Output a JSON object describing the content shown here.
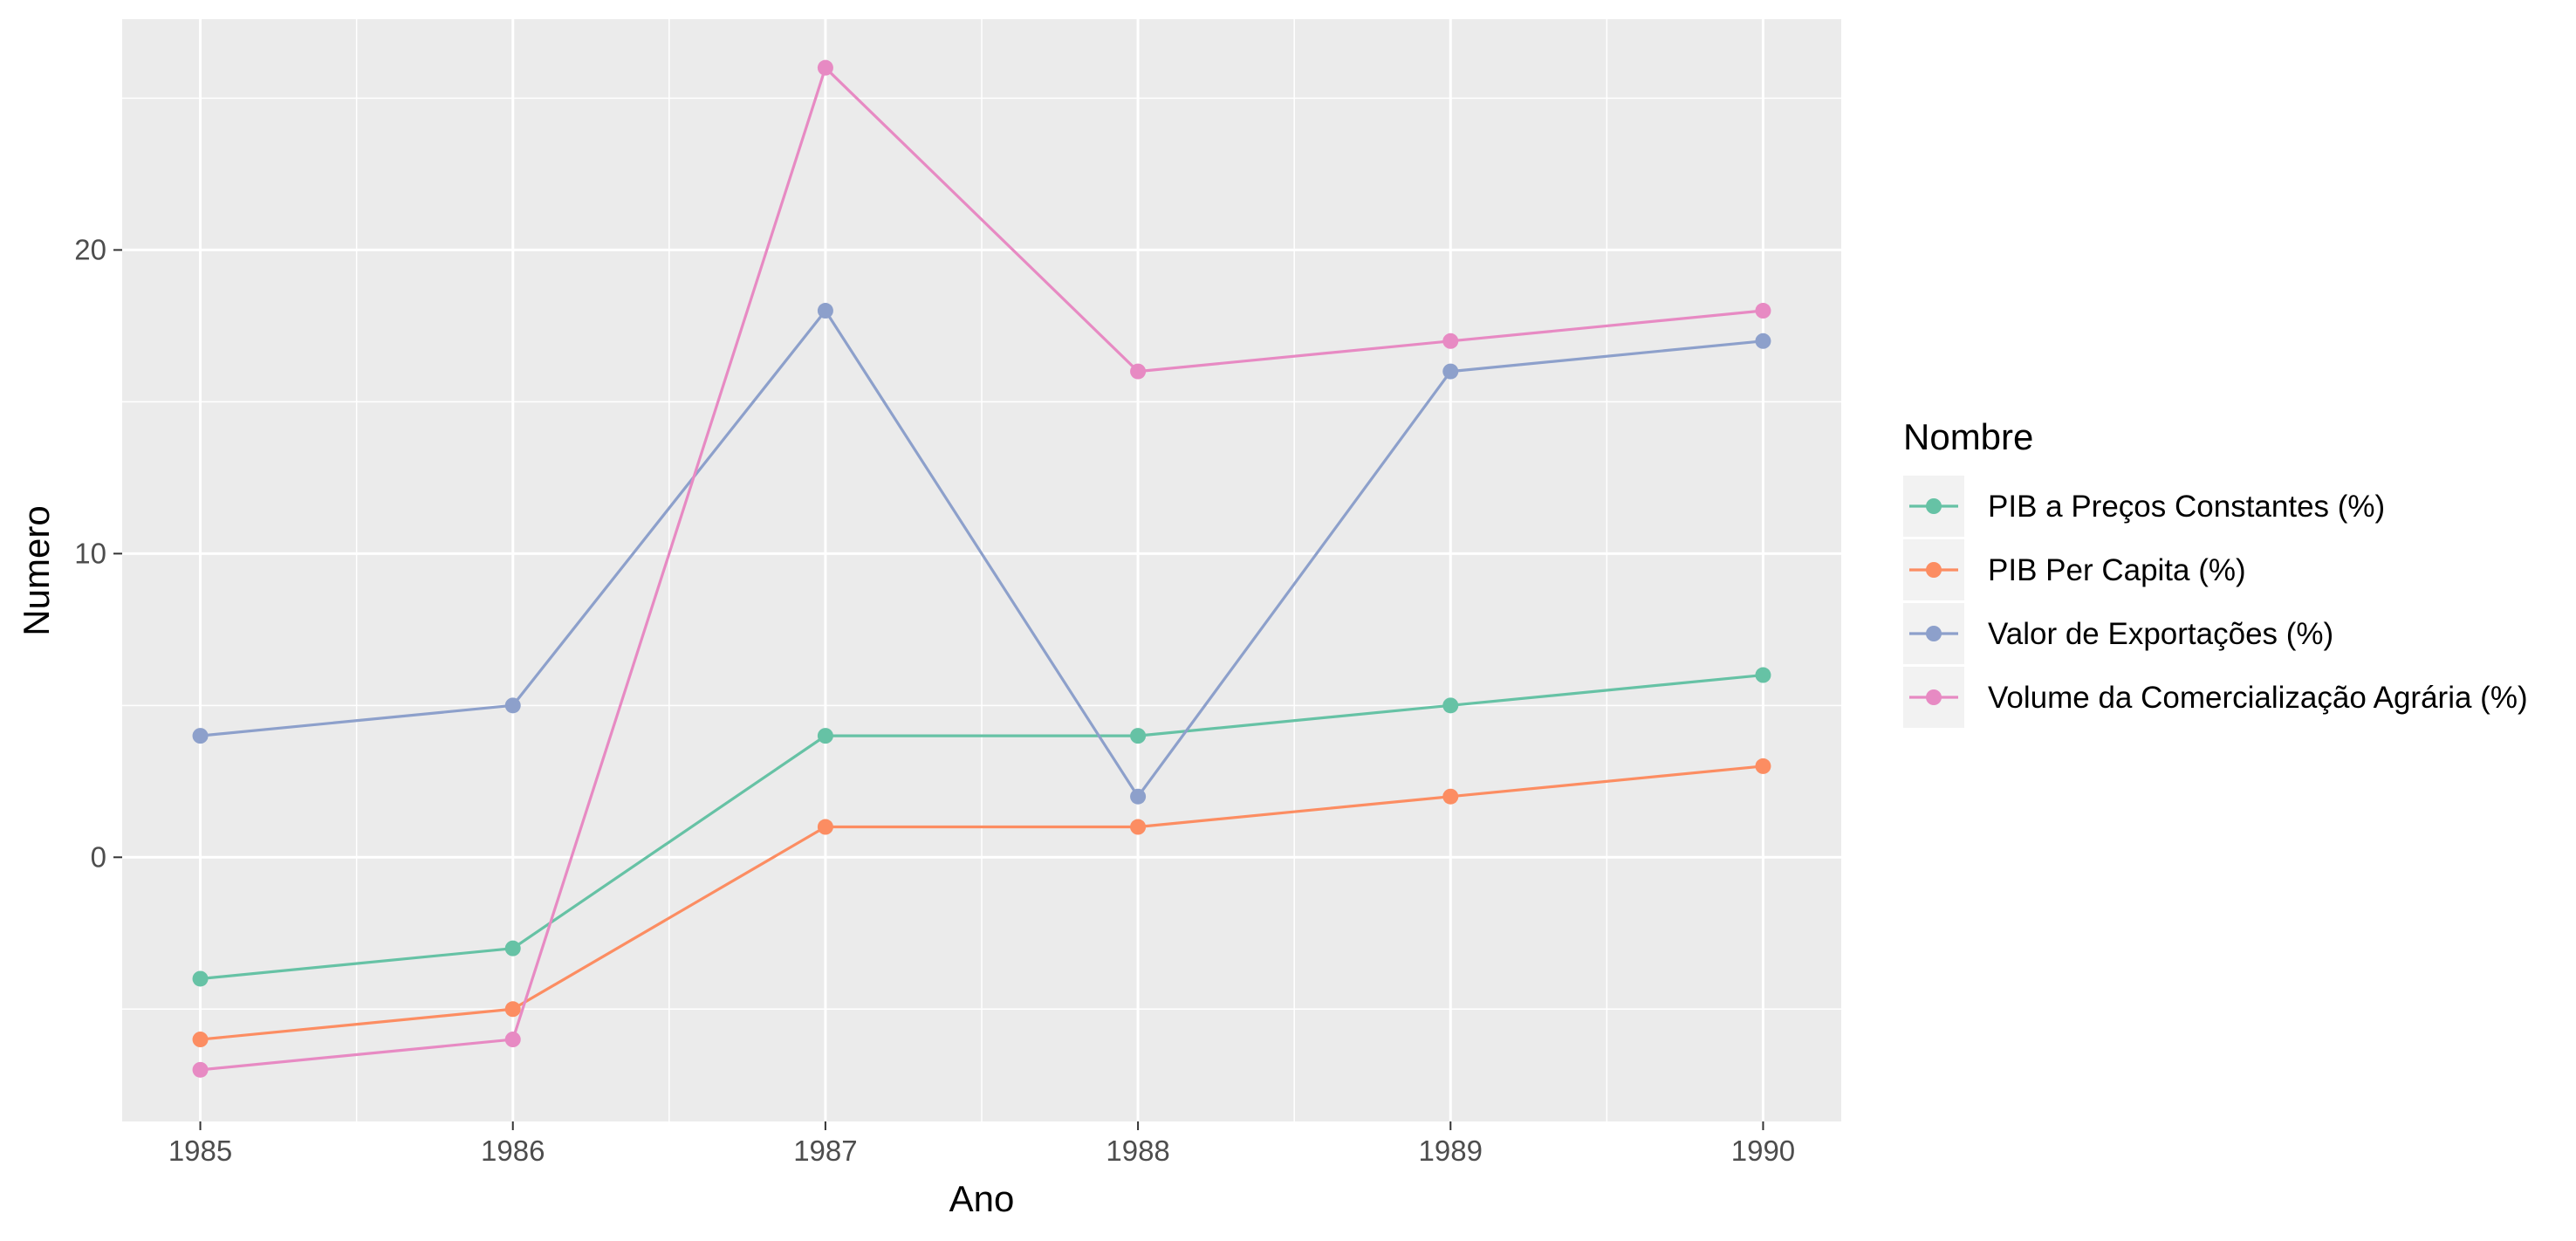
{
  "chart_data": {
    "type": "line",
    "title": "",
    "xlabel": "Ano",
    "ylabel": "Numero",
    "x": [
      1985,
      1986,
      1987,
      1988,
      1989,
      1990
    ],
    "x_tick_labels": [
      "1985",
      "1986",
      "1987",
      "1988",
      "1989",
      "1990"
    ],
    "xlim": [
      1984.75,
      1990.25
    ],
    "y_ticks": [
      0,
      10,
      20
    ],
    "y_tick_labels": [
      "0",
      "10",
      "20"
    ],
    "ylim": [
      -8.7,
      27.6
    ],
    "grid": true,
    "legend": {
      "title": "Nombre",
      "placement": "right"
    },
    "series": [
      {
        "name": "PIB a Preços Constantes (%)",
        "color": "#66C2A5",
        "values": [
          -4,
          -3,
          4,
          4,
          5,
          6
        ]
      },
      {
        "name": "PIB Per Capita (%)",
        "color": "#FC8D62",
        "values": [
          -6,
          -5,
          1,
          1,
          2,
          3
        ]
      },
      {
        "name": "Valor de Exportações (%)",
        "color": "#8DA0CB",
        "values": [
          4,
          5,
          18,
          2,
          16,
          17
        ]
      },
      {
        "name": "Volume da Comercialização Agrária (%)",
        "color": "#E78AC3",
        "values": [
          -7,
          -6,
          26,
          16,
          17,
          18
        ]
      }
    ]
  }
}
